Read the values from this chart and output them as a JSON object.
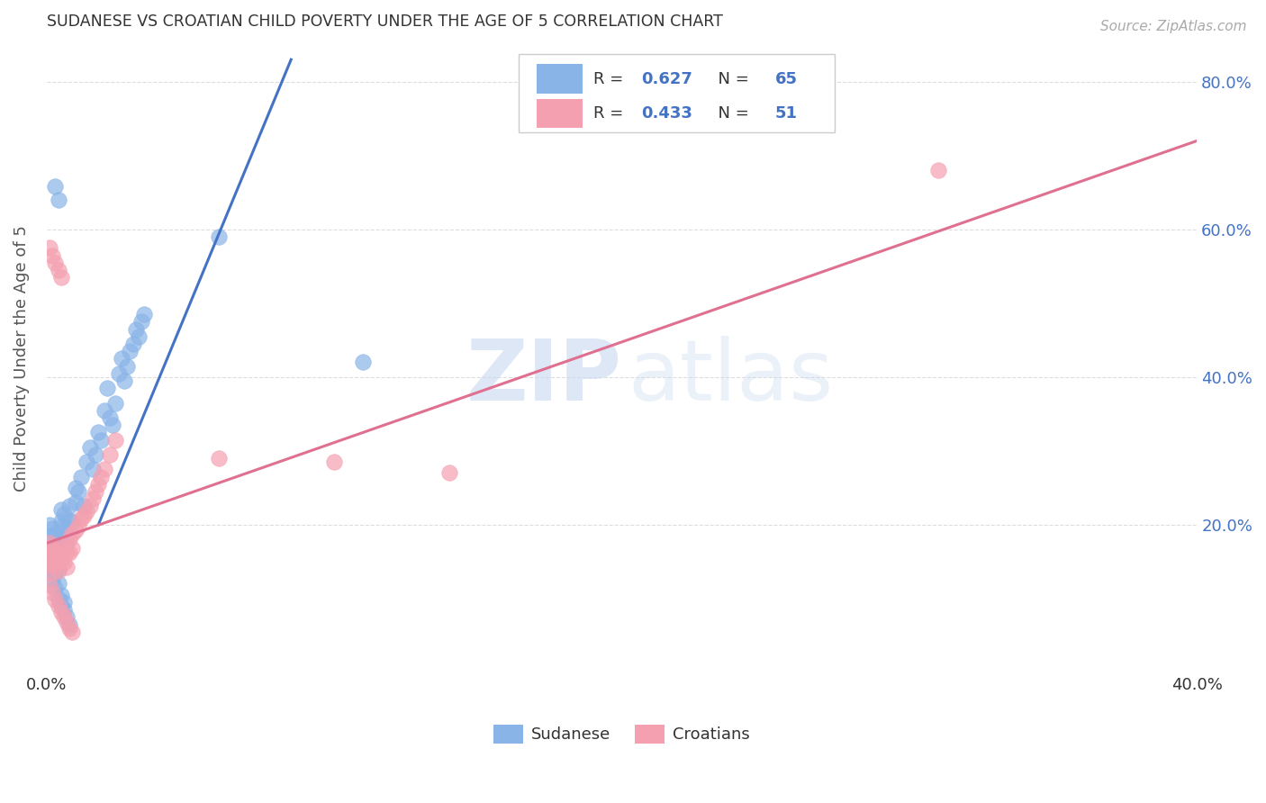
{
  "title": "SUDANESE VS CROATIAN CHILD POVERTY UNDER THE AGE OF 5 CORRELATION CHART",
  "source": "Source: ZipAtlas.com",
  "ylabel": "Child Poverty Under the Age of 5",
  "xlim": [
    0.0,
    0.4
  ],
  "ylim": [
    0.0,
    0.85
  ],
  "background_color": "#ffffff",
  "sudanese_color": "#89b4e8",
  "croatian_color": "#f4a0b0",
  "sudanese_R": "0.627",
  "sudanese_N": "65",
  "croatian_R": "0.433",
  "croatian_N": "51",
  "sudanese_line_x": [
    0.018,
    0.085
  ],
  "sudanese_line_y": [
    0.2,
    0.83
  ],
  "croatian_line_x": [
    0.0,
    0.4
  ],
  "croatian_line_y": [
    0.175,
    0.72
  ],
  "grid_color": "#dddddd",
  "sudanese_scatter_x": [
    0.001,
    0.001,
    0.001,
    0.002,
    0.002,
    0.002,
    0.003,
    0.003,
    0.003,
    0.004,
    0.004,
    0.004,
    0.005,
    0.005,
    0.005,
    0.006,
    0.006,
    0.007,
    0.007,
    0.008,
    0.008,
    0.009,
    0.01,
    0.01,
    0.011,
    0.012,
    0.013,
    0.014,
    0.015,
    0.016,
    0.017,
    0.018,
    0.019,
    0.02,
    0.021,
    0.022,
    0.023,
    0.024,
    0.025,
    0.026,
    0.027,
    0.028,
    0.029,
    0.03,
    0.031,
    0.032,
    0.033,
    0.034,
    0.001,
    0.002,
    0.003,
    0.004,
    0.005,
    0.006,
    0.002,
    0.003,
    0.004,
    0.005,
    0.006,
    0.007,
    0.008,
    0.003,
    0.004,
    0.06,
    0.11
  ],
  "sudanese_scatter_y": [
    0.2,
    0.185,
    0.17,
    0.195,
    0.175,
    0.155,
    0.188,
    0.172,
    0.145,
    0.178,
    0.162,
    0.14,
    0.22,
    0.205,
    0.185,
    0.215,
    0.2,
    0.195,
    0.175,
    0.225,
    0.205,
    0.205,
    0.25,
    0.23,
    0.245,
    0.265,
    0.225,
    0.285,
    0.305,
    0.275,
    0.295,
    0.325,
    0.315,
    0.355,
    0.385,
    0.345,
    0.335,
    0.365,
    0.405,
    0.425,
    0.395,
    0.415,
    0.435,
    0.445,
    0.465,
    0.455,
    0.475,
    0.485,
    0.16,
    0.14,
    0.135,
    0.12,
    0.105,
    0.095,
    0.125,
    0.115,
    0.1,
    0.09,
    0.085,
    0.075,
    0.065,
    0.658,
    0.64,
    0.59,
    0.42
  ],
  "croatian_scatter_x": [
    0.001,
    0.001,
    0.001,
    0.002,
    0.002,
    0.002,
    0.003,
    0.003,
    0.004,
    0.004,
    0.005,
    0.005,
    0.006,
    0.006,
    0.007,
    0.007,
    0.008,
    0.008,
    0.009,
    0.009,
    0.01,
    0.011,
    0.012,
    0.013,
    0.014,
    0.015,
    0.016,
    0.017,
    0.018,
    0.019,
    0.02,
    0.022,
    0.024,
    0.001,
    0.002,
    0.003,
    0.004,
    0.005,
    0.006,
    0.007,
    0.008,
    0.009,
    0.001,
    0.002,
    0.003,
    0.004,
    0.005,
    0.06,
    0.1,
    0.14,
    0.31
  ],
  "croatian_scatter_y": [
    0.175,
    0.16,
    0.145,
    0.17,
    0.155,
    0.135,
    0.165,
    0.148,
    0.158,
    0.138,
    0.172,
    0.152,
    0.168,
    0.148,
    0.162,
    0.142,
    0.18,
    0.162,
    0.188,
    0.168,
    0.192,
    0.198,
    0.208,
    0.212,
    0.218,
    0.225,
    0.235,
    0.245,
    0.255,
    0.265,
    0.275,
    0.295,
    0.315,
    0.118,
    0.108,
    0.098,
    0.09,
    0.082,
    0.075,
    0.068,
    0.06,
    0.055,
    0.575,
    0.565,
    0.555,
    0.545,
    0.535,
    0.29,
    0.285,
    0.27,
    0.68
  ]
}
